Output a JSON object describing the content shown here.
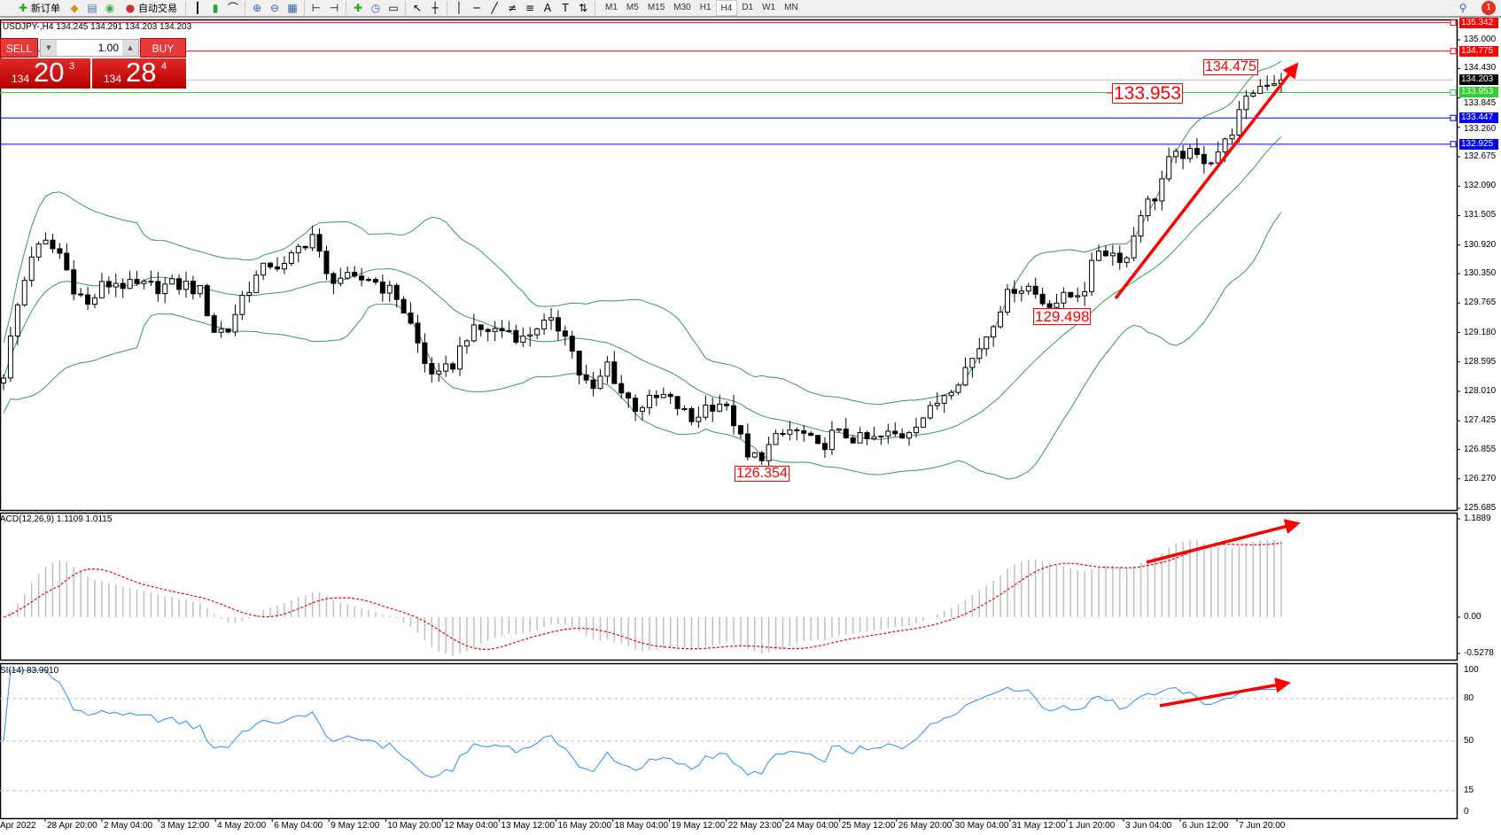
{
  "toolbar": {
    "new_order": "新订单",
    "auto_trading": "自动交易",
    "timeframes": [
      "M1",
      "M5",
      "M15",
      "M30",
      "H1",
      "H4",
      "D1",
      "W1",
      "MN"
    ],
    "active_timeframe": "H4",
    "notifications": "1"
  },
  "chart": {
    "header": "USDJPY-,H4  134.245 134.291 134.203 134.203"
  },
  "trade_panel": {
    "sell": "SELL",
    "buy": "BUY",
    "lot": "1.00",
    "sell_prefix": "134",
    "sell_big": "20",
    "sell_sup": "3",
    "buy_prefix": "134",
    "buy_big": "28",
    "buy_sup": "4"
  },
  "price_axis": {
    "ticks": [
      "135.000",
      "134.430",
      "133.845",
      "133.260",
      "132.675",
      "132.090",
      "131.505",
      "130.920",
      "130.350",
      "129.765",
      "129.180",
      "128.595",
      "128.010",
      "127.425",
      "126.855",
      "126.270",
      "125.685"
    ]
  },
  "hlines": [
    {
      "price": "135.342",
      "color": "#ff0000"
    },
    {
      "price": "134.775",
      "color": "#ff0000"
    },
    {
      "price": "134.203",
      "color": "#000000",
      "line": "#c0c0c0"
    },
    {
      "price": "133.953",
      "color": "#32cd32"
    },
    {
      "price": "133.447",
      "color": "#0000ff"
    },
    {
      "price": "132.925",
      "color": "#0000ff"
    }
  ],
  "annotations": [
    "133.953",
    "134.475",
    "129.498",
    "126.354"
  ],
  "macd": {
    "label": "ACD(12,26,9) 1.1109 1.0115",
    "ticks": [
      "1.1889",
      "0.00",
      "-0.5278"
    ]
  },
  "rsi": {
    "label": "SI(14) 83.9910",
    "ticks": [
      "100",
      "80",
      "50",
      "15",
      "0"
    ],
    "levels": [
      80,
      50,
      15
    ]
  },
  "x_axis": {
    "labels": [
      "Apr 2022",
      "28 Apr 20:00",
      "2 May 04:00",
      "3 May 12:00",
      "4 May 20:00",
      "6 May 04:00",
      "9 May 12:00",
      "10 May 20:00",
      "12 May 04:00",
      "13 May 12:00",
      "16 May 20:00",
      "18 May 04:00",
      "19 May 12:00",
      "22 May 23:00",
      "24 May 04:00",
      "25 May 12:00",
      "26 May 20:00",
      "30 May 04:00",
      "31 May 12:00",
      "1 Jun 20:00",
      "3 Jun 04:00",
      "6 Jun 12:00",
      "7 Jun 20:00"
    ]
  },
  "colors": {
    "bands": "#2e9d5a",
    "macd_hist": "#c0c0c0",
    "macd_signal": "#ff0000",
    "rsi": "#1e90ff",
    "arrows": "#ff0000"
  },
  "chart_data": {
    "type": "candlestick",
    "symbol": "USDJPY-",
    "timeframe": "H4",
    "indicators": [
      "Bollinger Bands",
      "MACD(12,26,9)",
      "RSI(14)"
    ],
    "ylim": [
      125.685,
      135.342
    ],
    "approx_closes": [
      128.37,
      129.71,
      130.75,
      130.94,
      130.75,
      130.09,
      129.71,
      130.09,
      130.18,
      130.09,
      130.09,
      130.09,
      130.12,
      130.12,
      129.99,
      129.23,
      129.23,
      129.9,
      130.28,
      130.56,
      130.47,
      130.85,
      131.13,
      130.28,
      130.28,
      130.18,
      130.28,
      130.09,
      129.9,
      129.33,
      128.56,
      128.28,
      128.56,
      129.14,
      129.23,
      129.23,
      129.23,
      129.04,
      129.33,
      129.33,
      129.23,
      128.37,
      127.99,
      128.56,
      127.99,
      127.71,
      127.8,
      127.9,
      127.71,
      127.42,
      127.71,
      127.8,
      127.42,
      126.66,
      126.76,
      127.04,
      127.23,
      127.14,
      126.85,
      127.14,
      127.14,
      127.04,
      127.04,
      127.14,
      127.14,
      127.42,
      127.61,
      127.99,
      128.28,
      128.66,
      129.14,
      129.71,
      130.09,
      130.09,
      129.8,
      129.8,
      129.9,
      130.09,
      130.85,
      130.75,
      130.66,
      131.61,
      131.89,
      132.56,
      132.75,
      132.65,
      132.65,
      132.94,
      133.51,
      133.99,
      134.18,
      134.203
    ]
  }
}
